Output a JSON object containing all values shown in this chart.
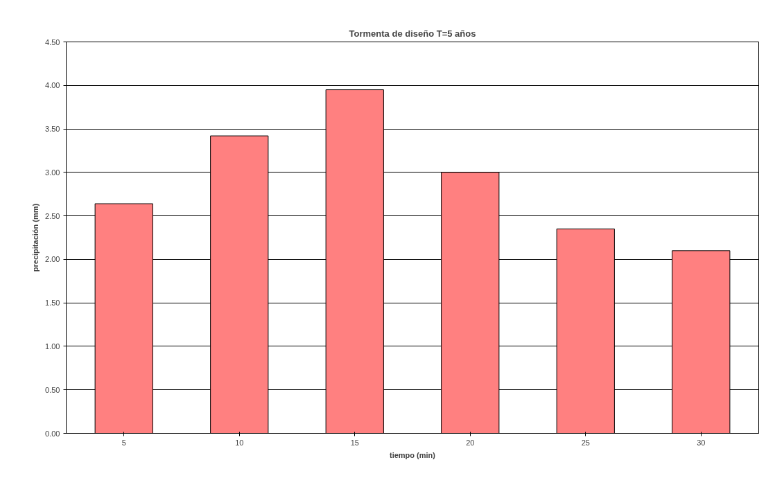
{
  "chart_data": {
    "type": "bar",
    "title": "Tormenta de diseño T=5 años",
    "xlabel": "tiempo (min)",
    "ylabel": "precipitación (mm)",
    "categories": [
      "5",
      "10",
      "15",
      "20",
      "25",
      "30"
    ],
    "values": [
      2.64,
      3.42,
      3.95,
      3.0,
      2.35,
      2.1
    ],
    "color": "#ff8080",
    "ylim": [
      0,
      4.5
    ],
    "yticks": [
      {
        "value": 0,
        "label": "0.00"
      },
      {
        "value": 0.5,
        "label": "0.50"
      },
      {
        "value": 1,
        "label": "1.00"
      },
      {
        "value": 1.5,
        "label": "1.50"
      },
      {
        "value": 2,
        "label": "2.00"
      },
      {
        "value": 2.5,
        "label": "2.50"
      },
      {
        "value": 3,
        "label": "3.00"
      },
      {
        "value": 3.5,
        "label": "3.50"
      },
      {
        "value": 4,
        "label": "4.00"
      },
      {
        "value": 4.5,
        "label": "4.50"
      }
    ],
    "grid": "y"
  }
}
